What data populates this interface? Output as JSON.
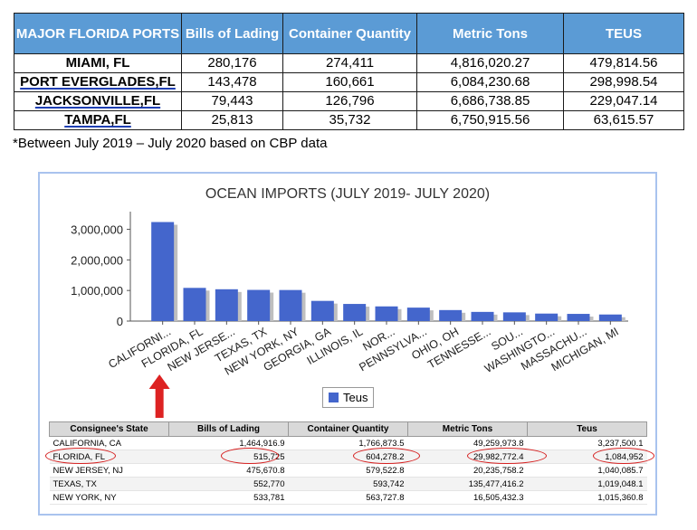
{
  "top_table": {
    "headers": [
      "MAJOR FLORIDA PORTS",
      "Bills of Lading",
      "Container Quantity",
      "Metric Tons",
      "TEUS"
    ],
    "rows": [
      [
        "MIAMI, FL",
        "280,176",
        "274,411",
        "4,816,020.27",
        "479,814.56"
      ],
      [
        "PORT EVERGLADES,FL",
        "143,478",
        "160,661",
        "6,084,230.68",
        "298,998.54"
      ],
      [
        "JACKSONVILLE,FL",
        "79,443",
        "126,796",
        "6,686,738.85",
        "229,047.14"
      ],
      [
        "TAMPA,FL",
        "25,813",
        "35,732",
        "6,750,915.56",
        "63,615.57"
      ]
    ]
  },
  "footnote": "*Between July 2019 – July 2020 based on CBP data",
  "chart_data": {
    "type": "bar",
    "title": "OCEAN IMPORTS (JULY 2019- JULY 2020)",
    "categories": [
      "CALIFORNI...",
      "FLORIDA, FL",
      "NEW JERSE...",
      "TEXAS, TX",
      "NEW YORK, NY",
      "GEORGIA, GA",
      "ILLINOIS, IL",
      "NOR...",
      "PENNSYLVA...",
      "OHIO, OH",
      "TENNESSE...",
      "SOU...",
      "WASHINGTO...",
      "MASSACHU...",
      "MICHIGAN, MI"
    ],
    "series": [
      {
        "name": "Teus",
        "values": [
          3237500,
          1084952,
          1040086,
          1019048,
          1015361,
          660000,
          560000,
          480000,
          440000,
          360000,
          300000,
          285000,
          245000,
          235000,
          215000
        ]
      }
    ],
    "yticks": [
      "3,000,000",
      "2,000,000",
      "1,000,000",
      "0"
    ],
    "ylim": [
      0,
      3400000
    ],
    "legend": "bottom-center",
    "bar_color": "#4466cc",
    "shadow_color": "#bfbfbf",
    "arrow_color": "#dd2222"
  },
  "state_table": {
    "headers": [
      "Consignee's State",
      "Bills of Lading",
      "Container Quantity",
      "Metric Tons",
      "Teus"
    ],
    "rows": [
      [
        "CALIFORNIA, CA",
        "1,464,916.9",
        "1,766,873.5",
        "49,259,973.8",
        "3,237,500.1"
      ],
      [
        "FLORIDA, FL",
        "515,725",
        "604,278.2",
        "29,982,772.4",
        "1,084,952"
      ],
      [
        "NEW JERSEY, NJ",
        "475,670.8",
        "579,522.8",
        "20,235,758.2",
        "1,040,085.7"
      ],
      [
        "TEXAS, TX",
        "552,770",
        "593,742",
        "135,477,416.2",
        "1,019,048.1"
      ],
      [
        "NEW YORK, NY",
        "533,781",
        "563,727.8",
        "16,505,432.3",
        "1,015,360.8"
      ]
    ],
    "highlight_color": "#d62020"
  }
}
